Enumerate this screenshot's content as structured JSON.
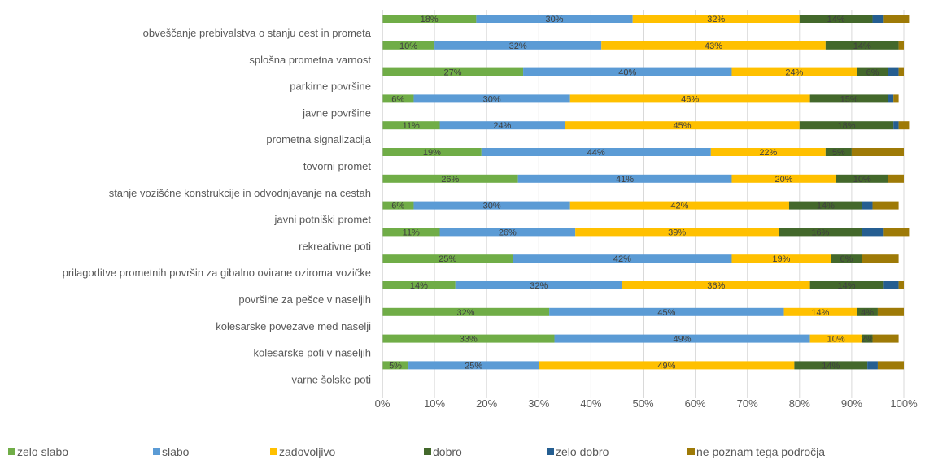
{
  "chart_data": {
    "type": "bar",
    "orientation": "horizontal",
    "stacked": true,
    "percent": true,
    "xlim": [
      0,
      100
    ],
    "x_ticks": [
      "0%",
      "10%",
      "20%",
      "30%",
      "40%",
      "50%",
      "60%",
      "70%",
      "80%",
      "90%",
      "100%"
    ],
    "legend_position": "bottom",
    "categories": [
      "obveščanje prebivalstva o stanju cest in prometa",
      "splošna prometna varnost",
      "parkirne površine",
      "javne površine",
      "prometna signalizacija",
      "tovorni promet",
      "stanje vozišćne konstrukcije in odvodnjavanje na cestah",
      "javni potniški promet",
      "rekreativne poti",
      "prilagoditve prometnih površin za gibalno ovirane oziroma vozičke",
      "površine za pešce v naseljih",
      "kolesarske povezave med naselji",
      "kolesarske poti v naseljih",
      "varne šolske poti"
    ],
    "series": [
      {
        "name": "zelo slabo",
        "color": "#70AD47",
        "values": [
          18,
          10,
          27,
          6,
          11,
          19,
          26,
          6,
          11,
          25,
          14,
          32,
          33,
          5
        ]
      },
      {
        "name": "slabo",
        "color": "#5B9BD5",
        "values": [
          30,
          32,
          40,
          30,
          24,
          44,
          41,
          30,
          26,
          42,
          32,
          45,
          49,
          25
        ]
      },
      {
        "name": "zadovoljivo",
        "color": "#FFC000",
        "values": [
          32,
          43,
          24,
          46,
          45,
          22,
          20,
          42,
          39,
          19,
          36,
          14,
          10,
          49
        ]
      },
      {
        "name": "dobro",
        "color": "#43682B",
        "values": [
          14,
          14,
          6,
          15,
          18,
          5,
          10,
          14,
          16,
          6,
          14,
          4,
          2,
          14
        ]
      },
      {
        "name": "zelo dobro",
        "color": "#255E91",
        "values": [
          2,
          0,
          2,
          1,
          1,
          0,
          0,
          2,
          4,
          0,
          3,
          0,
          0,
          2
        ]
      },
      {
        "name": "ne poznam tega področja",
        "color": "#9E7A07",
        "values": [
          5,
          1,
          1,
          1,
          2,
          10,
          3,
          5,
          5,
          7,
          1,
          5,
          5,
          5
        ]
      }
    ],
    "label_min": 2
  }
}
